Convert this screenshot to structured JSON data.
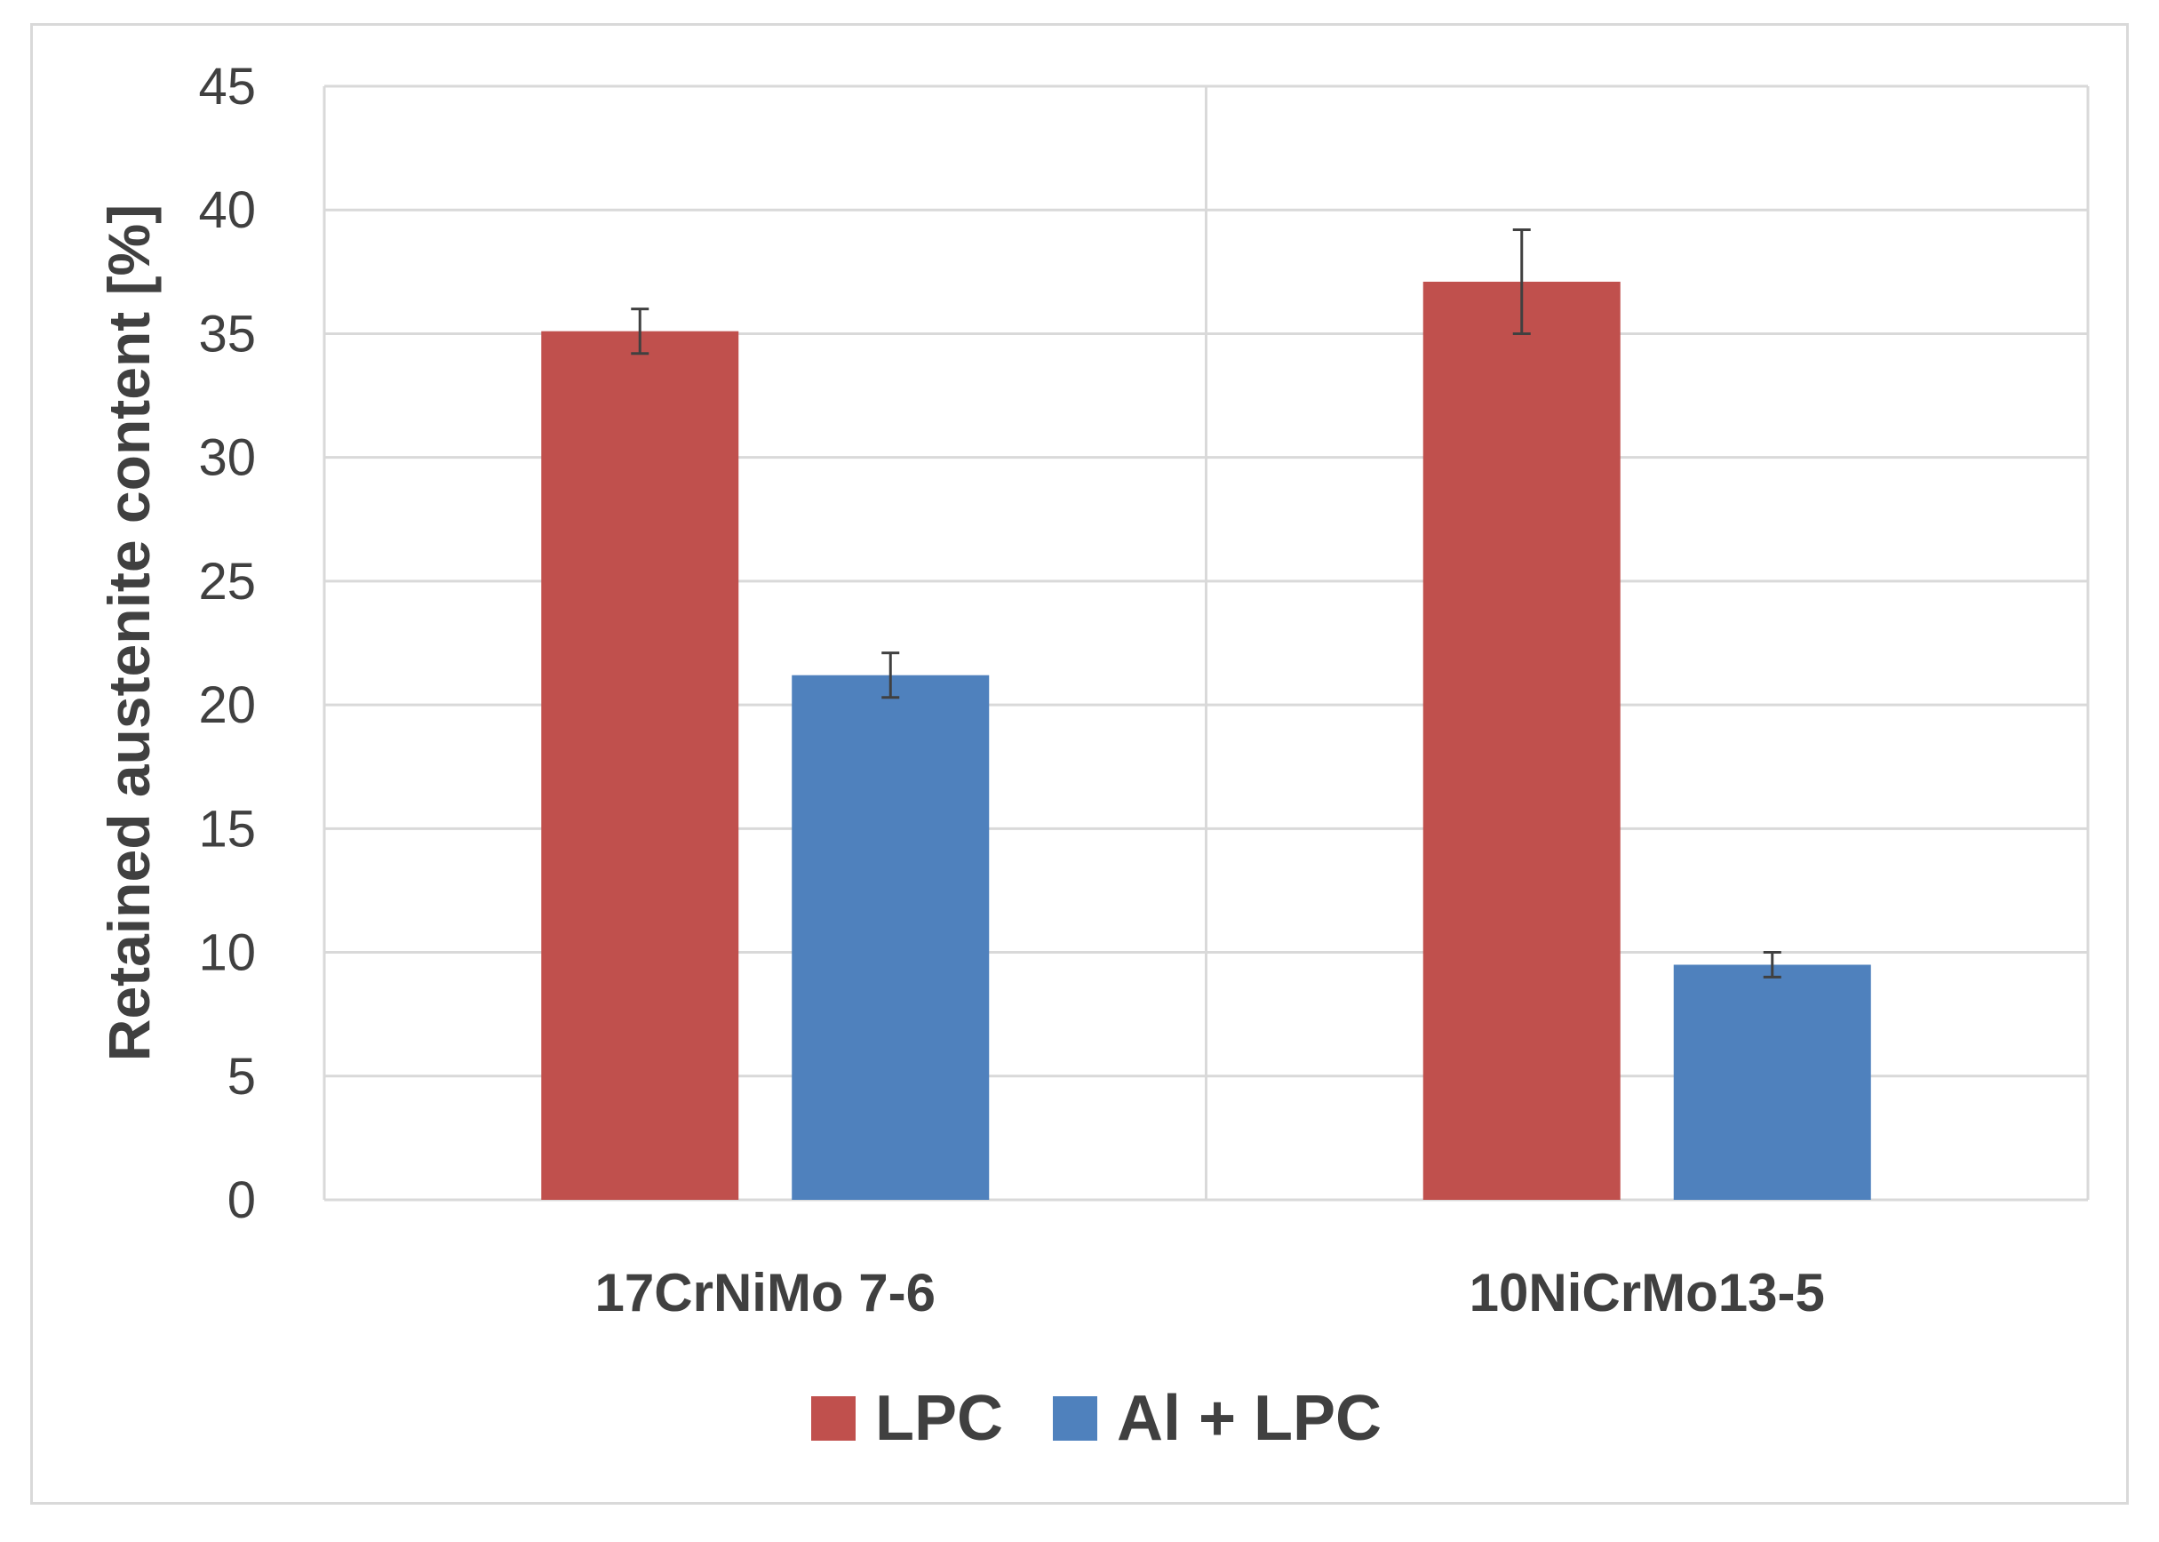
{
  "chart_data": {
    "type": "bar",
    "ylabel": "Retained austenite content [%]",
    "xlabel": "",
    "ylim": [
      0,
      45
    ],
    "yticks": [
      0,
      5,
      10,
      15,
      20,
      25,
      30,
      35,
      40,
      45
    ],
    "grid": true,
    "legend_position": "bottom",
    "categories": [
      "17CrNiMo 7-6",
      "10NiCrMo13-5"
    ],
    "series": [
      {
        "name": "LPC",
        "color": "#c0504d",
        "values": [
          35.1,
          37.1
        ],
        "errors": [
          0.9,
          2.1
        ]
      },
      {
        "name": "Al + LPC",
        "color": "#4f81bd",
        "values": [
          21.2,
          9.5
        ],
        "errors": [
          0.9,
          0.5
        ]
      }
    ]
  }
}
